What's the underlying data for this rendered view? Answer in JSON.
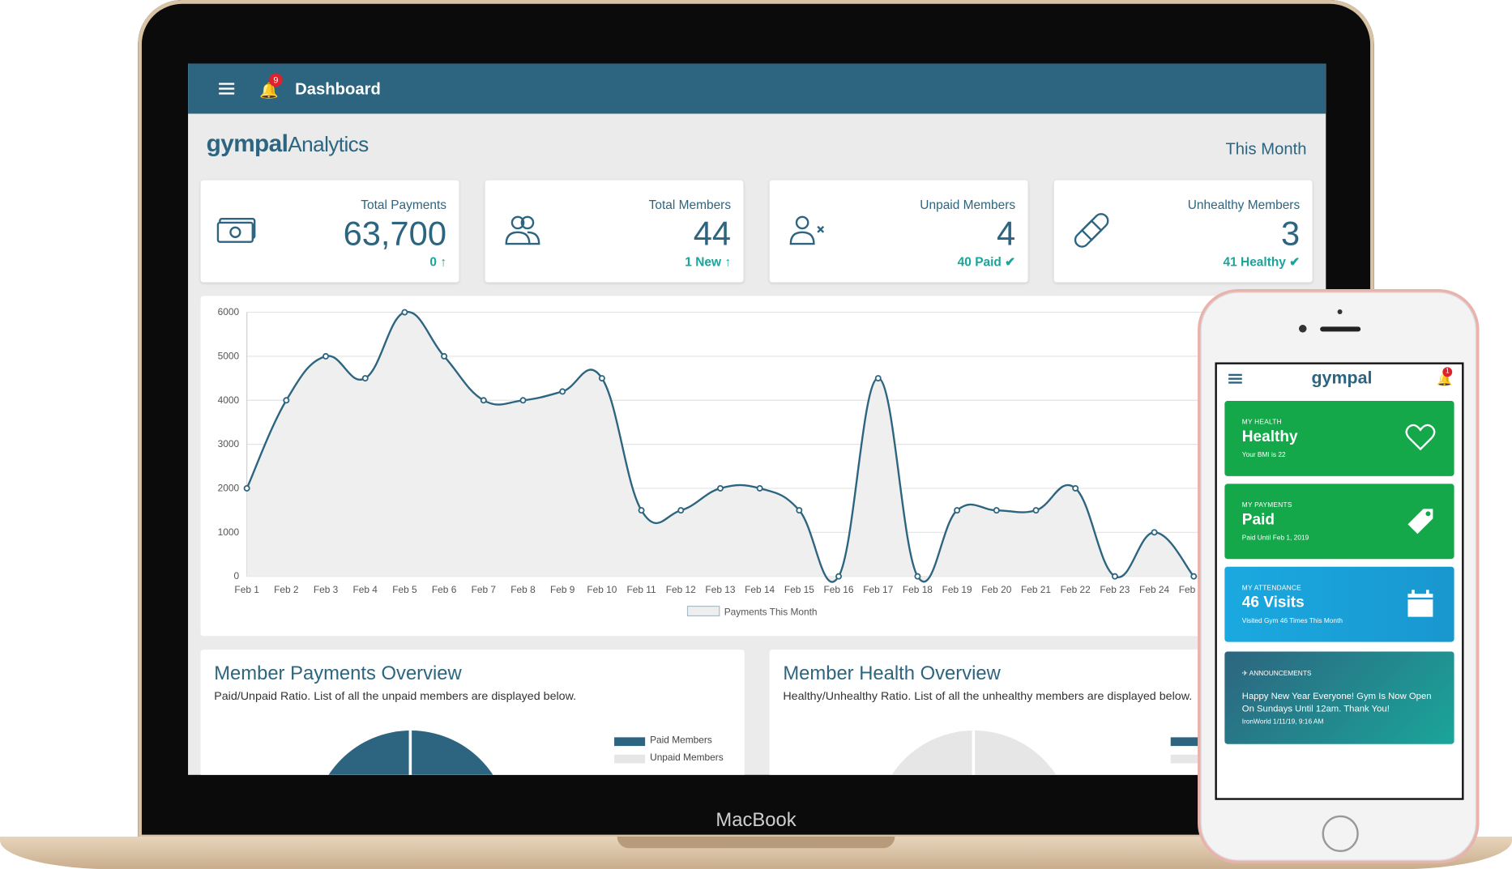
{
  "device_label": "MacBook",
  "topbar": {
    "title": "Dashboard",
    "notification_count": "9"
  },
  "brand": {
    "bold": "gympal",
    "light": "Analytics"
  },
  "period": "This Month",
  "stats": [
    {
      "label": "Total Payments",
      "value": "63,700",
      "sub": "0 ↑",
      "icon": "money-icon"
    },
    {
      "label": "Total Members",
      "value": "44",
      "sub": "1 New ↑",
      "icon": "members-icon"
    },
    {
      "label": "Unpaid Members",
      "value": "4",
      "sub": "40 Paid ✔",
      "icon": "user-x-icon"
    },
    {
      "label": "Unhealthy Members",
      "value": "3",
      "sub": "41 Healthy ✔",
      "icon": "bandage-icon"
    }
  ],
  "chart_data": {
    "type": "line",
    "categories": [
      "Feb 1",
      "Feb 2",
      "Feb 3",
      "Feb 4",
      "Feb 5",
      "Feb 6",
      "Feb 7",
      "Feb 8",
      "Feb 9",
      "Feb 10",
      "Feb 11",
      "Feb 12",
      "Feb 13",
      "Feb 14",
      "Feb 15",
      "Feb 16",
      "Feb 17",
      "Feb 18",
      "Feb 19",
      "Feb 20",
      "Feb 21",
      "Feb 22",
      "Feb 23",
      "Feb 24",
      "Feb 25"
    ],
    "series": [
      {
        "name": "Payments This Month",
        "values": [
          2000,
          4000,
          5000,
          4500,
          6000,
          5000,
          4000,
          4000,
          4200,
          4500,
          1500,
          1500,
          2000,
          2000,
          1500,
          0,
          4500,
          0,
          1500,
          1500,
          1500,
          2000,
          0,
          1000,
          0
        ]
      }
    ],
    "ylim": [
      0,
      6000
    ],
    "yticks": [
      "0",
      "1000",
      "2000",
      "3000",
      "4000",
      "5000",
      "6000"
    ],
    "legend": "bottom",
    "line_color": "#2d6580",
    "fill_color": "#efefef"
  },
  "overviews": [
    {
      "title": "Member Payments Overview",
      "desc": "Paid/Unpaid Ratio. List of all the unpaid members are displayed below.",
      "legend": [
        "Paid Members",
        "Unpaid Members"
      ]
    },
    {
      "title": "Member Health Overview",
      "desc": "Healthy/Unhealthy Ratio. List of all the unhealthy members are displayed below."
    }
  ],
  "phone": {
    "brand": "gympal",
    "notification_count": "1",
    "cards": [
      {
        "kicker": "MY HEALTH",
        "headline": "Healthy",
        "sub": "Your BMI is 22",
        "icon": "heart-icon",
        "color": "#14a84a"
      },
      {
        "kicker": "MY PAYMENTS",
        "headline": "Paid",
        "sub": "Paid Until Feb 1, 2019",
        "icon": "tag-icon",
        "color": "#14a84a"
      },
      {
        "kicker": "MY ATTENDANCE",
        "headline": "46 Visits",
        "sub": "Visited Gym 46 Times This Month",
        "icon": "calendar-icon",
        "color": "#1aa0d8"
      }
    ],
    "announcement": {
      "kicker": "ANNOUNCEMENTS",
      "message": "Happy New Year Everyone! Gym Is Now Open On Sundays Until 12am. Thank You!",
      "meta": "IronWorld 1/11/19, 9:16 AM"
    }
  }
}
